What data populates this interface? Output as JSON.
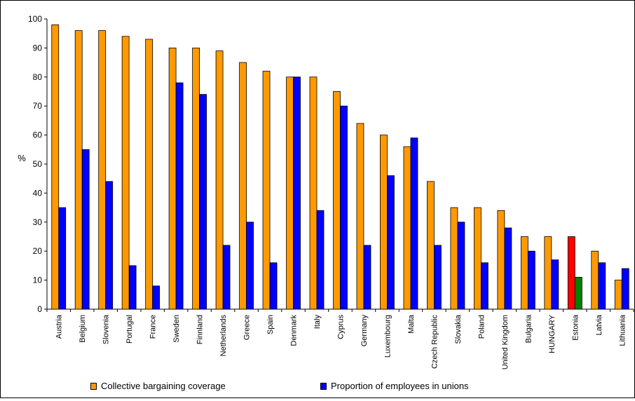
{
  "chart_data": {
    "type": "bar",
    "title": "",
    "xlabel": "",
    "ylabel": "%",
    "ylim": [
      0,
      100
    ],
    "yticks": [
      0,
      10,
      20,
      30,
      40,
      50,
      60,
      70,
      80,
      90,
      100
    ],
    "grid": false,
    "legend_position": "bottom",
    "categories": [
      "Austria",
      "Belgium",
      "Slovenia",
      "Portugal",
      "France",
      "Sweden",
      "Finnland",
      "Netherlands",
      "Greece",
      "Spain",
      "Denmark",
      "Italy",
      "Cyprus",
      "Germany",
      "Luxembourg",
      "Malta",
      "Czech Republic",
      "Slovakia",
      "Poland",
      "United Kingdom",
      "Bulgaria",
      "HUNGARY",
      "Estonia",
      "Latvia",
      "Lithuania"
    ],
    "series": [
      {
        "name": "Collective bargaining coverage",
        "color": "#FF9900",
        "values": [
          98,
          96,
          96,
          94,
          93,
          90,
          90,
          89,
          85,
          82,
          80,
          80,
          75,
          64,
          60,
          56,
          44,
          35,
          35,
          34,
          25,
          25,
          25,
          20,
          10
        ]
      },
      {
        "name": "Proportion of employees in unions",
        "color": "#0000FF",
        "values": [
          35,
          55,
          44,
          15,
          8,
          78,
          74,
          22,
          30,
          16,
          80,
          34,
          70,
          22,
          46,
          59,
          22,
          30,
          16,
          28,
          20,
          17,
          11,
          16,
          14
        ]
      }
    ],
    "highlight": {
      "category": "Estonia",
      "colors": [
        "#FF0000",
        "#008000"
      ]
    }
  }
}
